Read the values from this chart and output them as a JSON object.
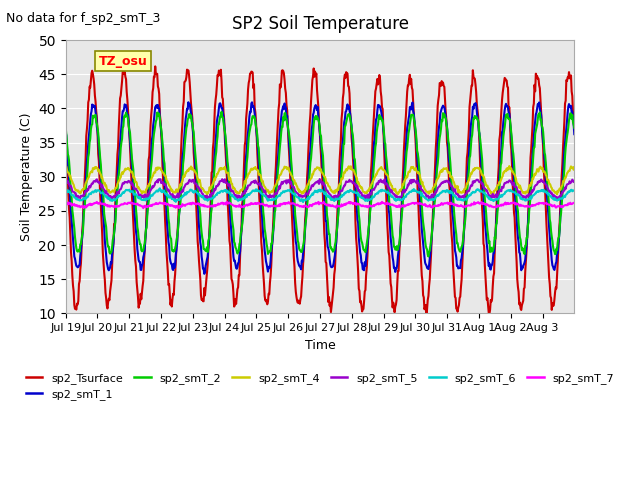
{
  "title": "SP2 Soil Temperature",
  "subtitle": "No data for f_sp2_smT_3",
  "xlabel": "Time",
  "ylabel": "Soil Temperature (C)",
  "ylim": [
    10,
    50
  ],
  "yticks": [
    10,
    15,
    20,
    25,
    30,
    35,
    40,
    45,
    50
  ],
  "tz_label": "TZ_osu",
  "background_color": "#e8e8e8",
  "series": {
    "sp2_Tsurface": {
      "color": "#cc0000",
      "linewidth": 1.5
    },
    "sp2_smT_1": {
      "color": "#0000cc",
      "linewidth": 1.5
    },
    "sp2_smT_2": {
      "color": "#00cc00",
      "linewidth": 1.5
    },
    "sp2_smT_4": {
      "color": "#cccc00",
      "linewidth": 1.5
    },
    "sp2_smT_5": {
      "color": "#9900cc",
      "linewidth": 1.5
    },
    "sp2_smT_6": {
      "color": "#00cccc",
      "linewidth": 1.5
    },
    "sp2_smT_7": {
      "color": "#ff00ff",
      "linewidth": 1.5
    }
  },
  "xtick_labels": [
    "Jul 19",
    "Jul 20",
    "Jul 21",
    "Jul 22",
    "Jul 23",
    "Jul 24",
    "Jul 25",
    "Jul 26",
    "Jul 27",
    "Jul 28",
    "Jul 29",
    "Jul 30",
    "Jul 31",
    "Aug 1",
    "Aug 2",
    "Aug 3"
  ],
  "n_days": 16,
  "points_per_day": 48,
  "legend_items": [
    {
      "label": "sp2_Tsurface",
      "color": "#cc0000"
    },
    {
      "label": "sp2_smT_1",
      "color": "#0000cc"
    },
    {
      "label": "sp2_smT_2",
      "color": "#00cc00"
    },
    {
      "label": "sp2_smT_4",
      "color": "#cccc00"
    },
    {
      "label": "sp2_smT_5",
      "color": "#9900cc"
    },
    {
      "label": "sp2_smT_6",
      "color": "#00cccc"
    },
    {
      "label": "sp2_smT_7",
      "color": "#ff00ff"
    }
  ]
}
